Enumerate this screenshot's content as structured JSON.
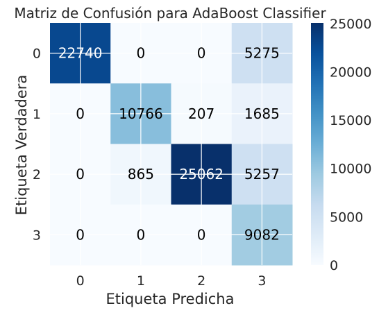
{
  "chart_data": {
    "type": "heatmap",
    "title": "Matriz de Confusión para AdaBoost Classifier",
    "xlabel": "Etiqueta Predicha",
    "ylabel": "Etiqueta Verdadera",
    "x_categories": [
      "0",
      "1",
      "2",
      "3"
    ],
    "y_categories": [
      "0",
      "1",
      "2",
      "3"
    ],
    "values": [
      [
        22740,
        0,
        0,
        5275
      ],
      [
        0,
        10766,
        207,
        1685
      ],
      [
        0,
        865,
        25062,
        5257
      ],
      [
        0,
        0,
        0,
        9082
      ]
    ],
    "colormap": "Blues",
    "vmin": 0,
    "vmax": 25062,
    "colorbar_ticks": [
      0,
      5000,
      10000,
      15000,
      20000,
      25000
    ],
    "grid": true
  }
}
